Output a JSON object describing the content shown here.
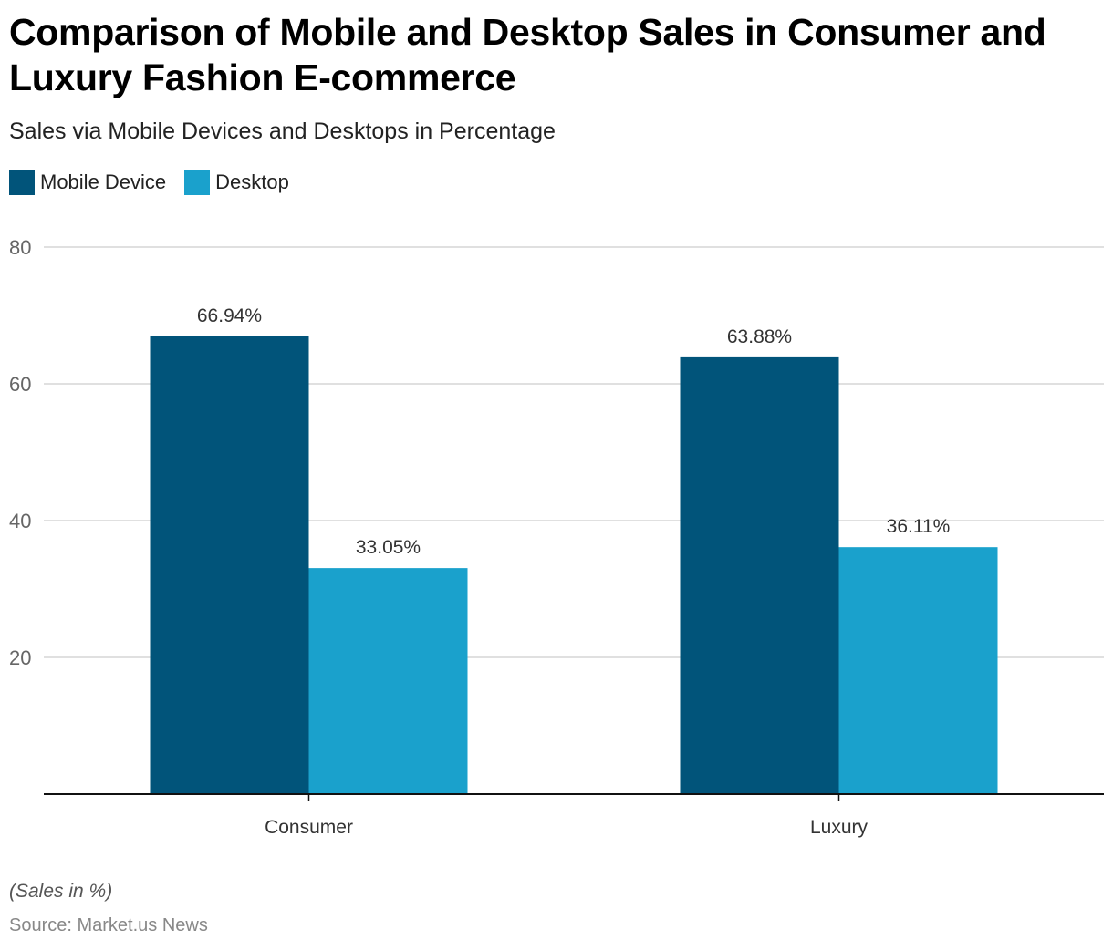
{
  "title": "Comparison of Mobile and Desktop Sales in Consumer and Luxury Fashion E-commerce",
  "subtitle": "Sales via Mobile Devices and Desktops in Percentage",
  "footnote": "(Sales in %)",
  "source": "Source: Market.us News",
  "chart_data": {
    "type": "bar",
    "title": "Comparison of Mobile and Desktop Sales in Consumer and Luxury Fashion E-commerce",
    "subtitle": "Sales via Mobile Devices and Desktops in Percentage",
    "categories": [
      "Consumer",
      "Luxury"
    ],
    "series": [
      {
        "name": "Mobile Device",
        "color": "#01547a",
        "values": [
          66.94,
          63.88
        ],
        "labels": [
          "66.94%",
          "63.88%"
        ]
      },
      {
        "name": "Desktop",
        "color": "#1aa1cc",
        "values": [
          33.05,
          36.11
        ],
        "labels": [
          "33.05%",
          "36.11%"
        ]
      }
    ],
    "xlabel": "",
    "ylabel": "",
    "ylim": [
      0,
      80
    ],
    "yticks": [
      20,
      40,
      60,
      80
    ],
    "grid": true,
    "legend": "top-left",
    "gridColor": "#d6d6d6",
    "axisColor": "#111111"
  }
}
